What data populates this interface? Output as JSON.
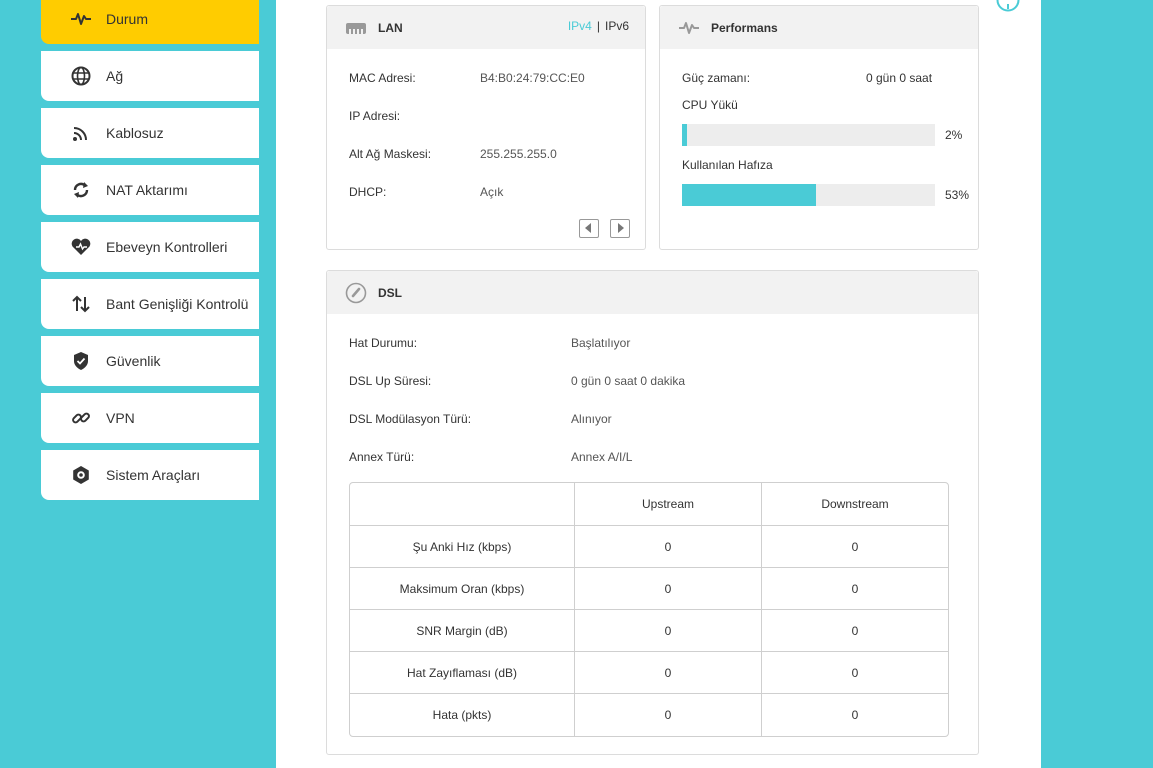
{
  "sidebar": {
    "items": [
      {
        "label": "Durum",
        "icon": "pulse-icon",
        "active": true
      },
      {
        "label": "Ağ",
        "icon": "globe-icon"
      },
      {
        "label": "Kablosuz",
        "icon": "wifi-icon"
      },
      {
        "label": "NAT Aktarımı",
        "icon": "nat-icon"
      },
      {
        "label": "Ebeveyn Kontrolleri",
        "icon": "heart-icon"
      },
      {
        "label": "Bant Genişliği Kontrolü",
        "icon": "arrows-updown-icon"
      },
      {
        "label": "Güvenlik",
        "icon": "shield-icon"
      },
      {
        "label": "VPN",
        "icon": "link-icon"
      },
      {
        "label": "Sistem Araçları",
        "icon": "gear-icon"
      }
    ]
  },
  "lan": {
    "title": "LAN",
    "ipv4": "IPv4",
    "separator": "|",
    "ipv6": "IPv6",
    "mac_label": "MAC Adresi:",
    "mac_value": "B4:B0:24:79:CC:E0",
    "ip_label": "IP Adresi:",
    "ip_value": "",
    "mask_label": "Alt Ağ Maskesi:",
    "mask_value": "255.255.255.0",
    "dhcp_label": "DHCP:",
    "dhcp_value": "Açık"
  },
  "performance": {
    "title": "Performans",
    "uptime_label": "Güç zamanı:",
    "uptime_value": "0 gün 0 saat",
    "cpu_label": "CPU Yükü",
    "cpu_percent": "2%",
    "cpu_value": 2,
    "memory_label": "Kullanılan Hafıza",
    "memory_percent": "53%",
    "memory_value": 53
  },
  "dsl": {
    "title": "DSL",
    "line_status_label": "Hat Durumu:",
    "line_status_value": "Başlatılıyor",
    "uptime_label": "DSL Up Süresi:",
    "uptime_value": "0 gün 0 saat 0 dakika",
    "modulation_label": "DSL Modülasyon Türü:",
    "modulation_value": "Alınıyor",
    "annex_label": "Annex Türü:",
    "annex_value": "Annex A/I/L",
    "table": {
      "headers": [
        "",
        "Upstream",
        "Downstream"
      ],
      "rows": [
        [
          "Şu Anki Hız (kbps)",
          "0",
          "0"
        ],
        [
          "Maksimum Oran (kbps)",
          "0",
          "0"
        ],
        [
          "SNR Margin (dB)",
          "0",
          "0"
        ],
        [
          "Hat Zayıflaması (dB)",
          "0",
          "0"
        ],
        [
          "Hata (pkts)",
          "0",
          "0"
        ]
      ]
    }
  },
  "colors": {
    "accent": "#4acbd6",
    "active_nav": "#ffcc00",
    "header_bg": "#f2f2f2"
  }
}
